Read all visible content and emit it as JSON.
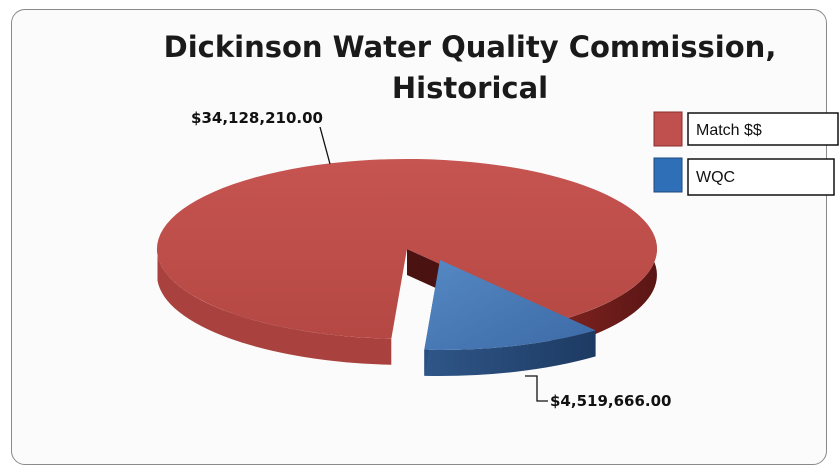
{
  "chart_data": {
    "type": "pie",
    "title": "Dickinson Water Quality Commission, Historical",
    "title_lines": [
      "Dickinson Water Quality Commission,",
      "Historical"
    ],
    "categories": [
      "Match $$",
      "WQC"
    ],
    "values": [
      34128210.0,
      4519666.0
    ],
    "value_labels": [
      "$34,128,210.00",
      "$4,519,666.00"
    ],
    "colors": [
      "#c0504d",
      "#4f81bd"
    ],
    "three_d": true,
    "exploded": "WQC",
    "legend": "right",
    "grid": false
  }
}
